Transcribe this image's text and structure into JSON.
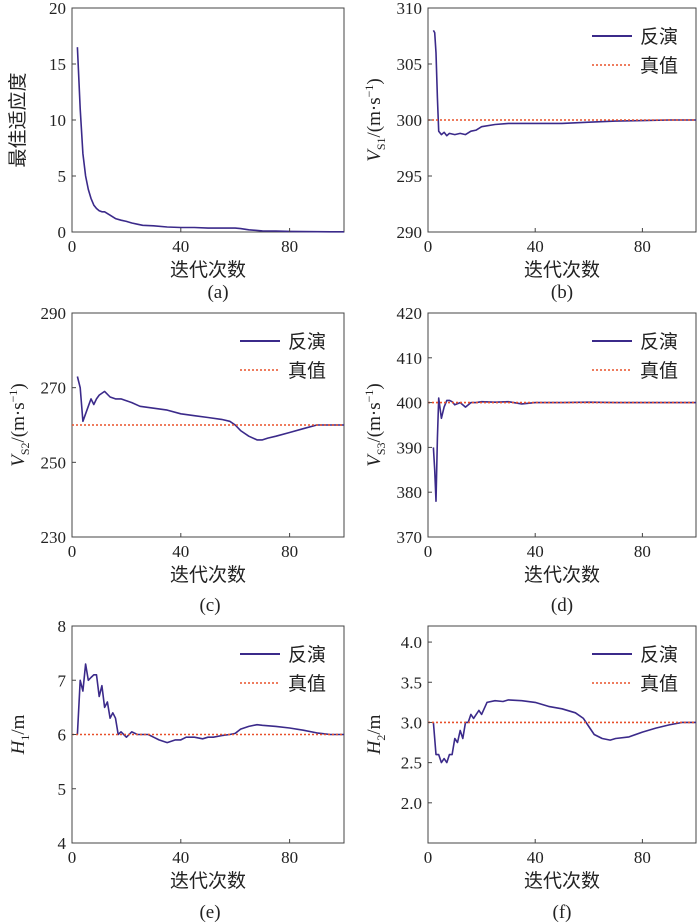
{
  "colors": {
    "inverted": "#3b2a8a",
    "true": "#e8502a",
    "axis": "#444444"
  },
  "chart_data": [
    {
      "id": "a",
      "type": "line",
      "panel_label": "(a)",
      "xlabel": "迭代次数",
      "ylabel_text": "最佳适应度",
      "xlim": [
        0,
        100
      ],
      "ylim": [
        0,
        20
      ],
      "xticks": [
        0,
        40,
        80
      ],
      "yticks": [
        0,
        5,
        10,
        15,
        20
      ],
      "series": [
        {
          "role": "inverted",
          "x": [
            2,
            3,
            4,
            5,
            6,
            7,
            8,
            9,
            10,
            11,
            12,
            14,
            16,
            18,
            20,
            22,
            24,
            26,
            30,
            35,
            40,
            45,
            50,
            55,
            60,
            62,
            65,
            70,
            75,
            80,
            85,
            90,
            95,
            100
          ],
          "y": [
            16.5,
            11,
            7,
            5,
            3.8,
            3.0,
            2.4,
            2.1,
            1.9,
            1.8,
            1.8,
            1.5,
            1.2,
            1.05,
            0.95,
            0.8,
            0.7,
            0.6,
            0.55,
            0.45,
            0.4,
            0.4,
            0.35,
            0.35,
            0.35,
            0.3,
            0.2,
            0.1,
            0.08,
            0.05,
            0.04,
            0.03,
            0.02,
            0.02
          ]
        }
      ]
    },
    {
      "id": "b",
      "type": "line",
      "panel_label": "(b)",
      "xlabel": "迭代次数",
      "ylabel_parts": [
        "V",
        "S1",
        "/(m·s",
        "−1",
        ")"
      ],
      "xlim": [
        0,
        100
      ],
      "ylim": [
        290,
        310
      ],
      "xticks": [
        0,
        40,
        80
      ],
      "yticks": [
        290,
        295,
        300,
        305,
        310
      ],
      "legend": {
        "placement": "top-right",
        "entries": [
          "反演",
          "真值"
        ]
      },
      "series": [
        {
          "role": "inverted",
          "x": [
            2,
            2.5,
            3,
            3.5,
            4,
            5,
            6,
            7,
            8,
            10,
            12,
            14,
            16,
            18,
            20,
            25,
            30,
            40,
            50,
            60,
            70,
            80,
            90,
            100
          ],
          "y": [
            308,
            307.8,
            306,
            302,
            299,
            298.7,
            298.9,
            298.6,
            298.8,
            298.7,
            298.8,
            298.7,
            299.0,
            299.1,
            299.4,
            299.6,
            299.7,
            299.7,
            299.7,
            299.8,
            299.9,
            299.95,
            300,
            300
          ]
        },
        {
          "role": "true",
          "x": [
            0,
            100
          ],
          "y": [
            300,
            300
          ]
        }
      ]
    },
    {
      "id": "c",
      "type": "line",
      "panel_label": "(c)",
      "xlabel": "迭代次数",
      "ylabel_parts": [
        "V",
        "S2",
        "/(m·s",
        "−1",
        ")"
      ],
      "xlim": [
        0,
        100
      ],
      "ylim": [
        230,
        290
      ],
      "xticks": [
        0,
        40,
        80
      ],
      "yticks": [
        230,
        250,
        270,
        290
      ],
      "ytick_labels": [
        "230",
        "250",
        "270",
        "290"
      ],
      "legend": {
        "placement": "top-right",
        "entries": [
          "反演",
          "真值"
        ]
      },
      "series": [
        {
          "role": "inverted",
          "x": [
            2,
            3,
            4,
            5,
            6,
            7,
            8,
            9,
            10,
            12,
            14,
            16,
            18,
            20,
            22,
            25,
            30,
            35,
            40,
            45,
            50,
            55,
            58,
            60,
            62,
            65,
            68,
            70,
            72,
            75,
            80,
            85,
            90,
            95,
            100
          ],
          "y": [
            273,
            270,
            261,
            263,
            265,
            267,
            265.5,
            267,
            268,
            269,
            267.5,
            267,
            267,
            266.5,
            266,
            265,
            264.5,
            264,
            263,
            262.5,
            262,
            261.5,
            261,
            260,
            258.5,
            257,
            256,
            256,
            256.5,
            257,
            258,
            259,
            260,
            260,
            260
          ]
        },
        {
          "role": "true",
          "x": [
            0,
            100
          ],
          "y": [
            260,
            260
          ]
        }
      ]
    },
    {
      "id": "d",
      "type": "line",
      "panel_label": "(d)",
      "xlabel": "迭代次数",
      "ylabel_parts": [
        "V",
        "S3",
        "/(m·s",
        "−1",
        ")"
      ],
      "xlim": [
        0,
        100
      ],
      "ylim": [
        370,
        420
      ],
      "xticks": [
        0,
        40,
        80
      ],
      "yticks": [
        370,
        380,
        390,
        400,
        410,
        420
      ],
      "legend": {
        "placement": "top-right",
        "entries": [
          "反演",
          "真值"
        ]
      },
      "series": [
        {
          "role": "inverted",
          "x": [
            2,
            2.5,
            3,
            3.5,
            4,
            5,
            6,
            7,
            8,
            9,
            10,
            12,
            14,
            16,
            18,
            20,
            25,
            30,
            35,
            40,
            50,
            60,
            70,
            80,
            90,
            100
          ],
          "y": [
            390,
            385,
            378,
            392,
            401,
            396.5,
            399,
            400.5,
            400.5,
            400.2,
            399.5,
            400,
            399,
            400,
            400,
            400.2,
            400.1,
            400.2,
            399.7,
            400,
            400,
            400.1,
            400,
            400,
            400,
            400
          ]
        },
        {
          "role": "true",
          "x": [
            0,
            100
          ],
          "y": [
            400,
            400
          ]
        }
      ]
    },
    {
      "id": "e",
      "type": "line",
      "panel_label": "(e)",
      "xlabel": "迭代次数",
      "ylabel_parts": [
        "H",
        "1",
        "/m",
        "",
        ""
      ],
      "xlim": [
        0,
        100
      ],
      "ylim": [
        4,
        8
      ],
      "xticks": [
        0,
        40,
        80
      ],
      "yticks": [
        4,
        5,
        6,
        7,
        8
      ],
      "legend": {
        "placement": "top-right",
        "entries": [
          "反演",
          "真值"
        ]
      },
      "series": [
        {
          "role": "inverted",
          "x": [
            2,
            3,
            4,
            5,
            6,
            7,
            8,
            9,
            10,
            11,
            12,
            13,
            14,
            15,
            16,
            17,
            18,
            19,
            20,
            22,
            24,
            26,
            28,
            30,
            32,
            35,
            38,
            40,
            42,
            45,
            48,
            50,
            52,
            55,
            58,
            60,
            62,
            65,
            68,
            70,
            75,
            80,
            85,
            90,
            95,
            100
          ],
          "y": [
            6.0,
            7.0,
            6.8,
            7.3,
            7.0,
            7.05,
            7.1,
            7.1,
            6.7,
            6.9,
            6.5,
            6.6,
            6.3,
            6.4,
            6.3,
            6.0,
            6.05,
            6.0,
            5.95,
            6.05,
            6.0,
            6.0,
            6.0,
            5.95,
            5.9,
            5.85,
            5.9,
            5.9,
            5.95,
            5.95,
            5.92,
            5.95,
            5.95,
            5.98,
            6.0,
            6.02,
            6.1,
            6.15,
            6.18,
            6.17,
            6.15,
            6.12,
            6.08,
            6.03,
            6.0,
            6.0
          ]
        },
        {
          "role": "true",
          "x": [
            0,
            100
          ],
          "y": [
            6,
            6
          ]
        }
      ]
    },
    {
      "id": "f",
      "type": "line",
      "panel_label": "(f)",
      "xlabel": "迭代次数",
      "ylabel_parts": [
        "H",
        "2",
        "/m",
        "",
        ""
      ],
      "xlim": [
        0,
        100
      ],
      "ylim": [
        1.5,
        4.2
      ],
      "xticks": [
        0,
        40,
        80
      ],
      "yticks": [
        2.0,
        2.5,
        3.0,
        3.5,
        4.0
      ],
      "ytick_labels": [
        "2.0",
        "2.5",
        "3.0",
        "3.5",
        "4.0"
      ],
      "legend": {
        "placement": "top-right",
        "entries": [
          "反演",
          "真值"
        ]
      },
      "series": [
        {
          "role": "inverted",
          "x": [
            2,
            3,
            4,
            5,
            6,
            7,
            8,
            9,
            10,
            11,
            12,
            13,
            14,
            15,
            16,
            17,
            18,
            19,
            20,
            22,
            25,
            28,
            30,
            35,
            40,
            45,
            50,
            55,
            58,
            60,
            62,
            65,
            68,
            70,
            75,
            80,
            85,
            90,
            95,
            100
          ],
          "y": [
            3.0,
            2.6,
            2.6,
            2.5,
            2.55,
            2.5,
            2.6,
            2.6,
            2.8,
            2.75,
            2.9,
            2.8,
            3.0,
            3.0,
            3.1,
            3.05,
            3.1,
            3.15,
            3.1,
            3.25,
            3.27,
            3.26,
            3.28,
            3.27,
            3.25,
            3.2,
            3.17,
            3.12,
            3.05,
            2.95,
            2.85,
            2.8,
            2.78,
            2.8,
            2.82,
            2.88,
            2.93,
            2.97,
            3.0,
            3.0
          ]
        },
        {
          "role": "true",
          "x": [
            0,
            100
          ],
          "y": [
            3,
            3
          ]
        }
      ]
    }
  ]
}
